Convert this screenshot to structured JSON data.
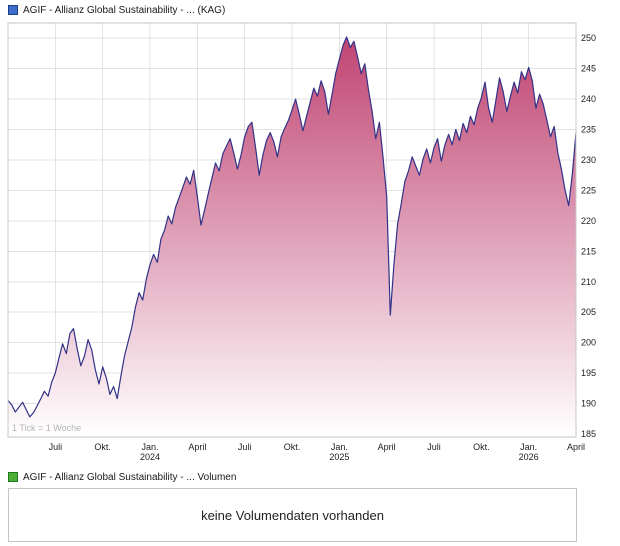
{
  "header": {
    "title": "AGIF - Allianz Global Sustainability - ... (KAG)"
  },
  "chart_data": {
    "type": "area",
    "title": "AGIF - Allianz Global Sustainability - ... (KAG)",
    "xlabel": "",
    "ylabel": "",
    "watermark": "1 Tick = 1 Woche",
    "grid": true,
    "legend_position": "none",
    "line_color": "#323287",
    "fill_top": "#c04472",
    "fill_bottom": "#ffffff",
    "grid_color": "#e2e2e2",
    "border_color": "#c6c6c6",
    "ylim": [
      184.5,
      252.5
    ],
    "y_ticks": [
      185,
      190,
      195,
      200,
      205,
      210,
      215,
      220,
      225,
      230,
      235,
      240,
      245,
      250
    ],
    "months_total": 36,
    "x_ticks": [
      {
        "label": "Juli",
        "pos": 3
      },
      {
        "label": "Okt.",
        "pos": 6
      },
      {
        "label": "Jan.",
        "year": "2024",
        "pos": 9
      },
      {
        "label": "April",
        "pos": 12
      },
      {
        "label": "Juli",
        "pos": 15
      },
      {
        "label": "Okt.",
        "pos": 18
      },
      {
        "label": "Jan.",
        "year": "2025",
        "pos": 21
      },
      {
        "label": "April",
        "pos": 24
      },
      {
        "label": "Juli",
        "pos": 27
      },
      {
        "label": "Okt.",
        "pos": 30
      },
      {
        "label": "Jan.",
        "year": "2026",
        "pos": 33
      },
      {
        "label": "April",
        "pos": 36
      }
    ],
    "values": [
      190.5,
      189.8,
      188.6,
      189.4,
      190.2,
      189.0,
      187.8,
      188.5,
      189.6,
      190.8,
      192.0,
      191.2,
      193.5,
      195.0,
      197.5,
      199.8,
      198.2,
      201.5,
      202.3,
      199.0,
      196.2,
      197.8,
      200.5,
      198.8,
      195.5,
      193.2,
      196.0,
      194.2,
      191.5,
      192.8,
      190.8,
      194.5,
      197.8,
      200.2,
      202.5,
      205.8,
      208.2,
      207.0,
      210.5,
      212.8,
      214.5,
      213.2,
      217.0,
      218.5,
      220.8,
      219.5,
      222.2,
      223.8,
      225.5,
      227.2,
      226.0,
      228.3,
      224.0,
      219.3,
      221.8,
      224.5,
      227.0,
      229.5,
      228.2,
      231.0,
      232.3,
      233.5,
      231.2,
      228.5,
      230.8,
      233.8,
      235.5,
      236.2,
      232.0,
      227.5,
      230.8,
      233.2,
      234.5,
      233.0,
      230.5,
      233.8,
      235.2,
      236.5,
      238.2,
      240.0,
      237.5,
      234.8,
      237.2,
      239.5,
      241.8,
      240.5,
      243.0,
      241.2,
      237.5,
      240.8,
      244.2,
      246.5,
      248.8,
      250.2,
      248.5,
      249.5,
      247.0,
      244.2,
      245.8,
      241.5,
      238.0,
      233.5,
      236.2,
      230.5,
      224.0,
      204.5,
      212.8,
      219.5,
      222.8,
      226.5,
      228.2,
      230.5,
      229.0,
      227.5,
      230.2,
      231.8,
      229.5,
      232.0,
      233.5,
      229.8,
      232.5,
      234.2,
      232.5,
      235.0,
      233.2,
      236.0,
      234.5,
      237.2,
      235.8,
      238.5,
      240.2,
      242.8,
      238.5,
      236.2,
      239.8,
      243.5,
      241.2,
      238.0,
      240.5,
      242.8,
      241.0,
      244.5,
      243.2,
      245.2,
      243.0,
      238.5,
      240.8,
      239.2,
      236.5,
      233.8,
      235.5,
      231.2,
      228.5,
      225.0,
      222.5,
      227.8,
      234.5
    ]
  },
  "volume": {
    "legend": "AGIF - Allianz Global Sustainability - ... Volumen",
    "message": "keine Volumendaten vorhanden"
  }
}
